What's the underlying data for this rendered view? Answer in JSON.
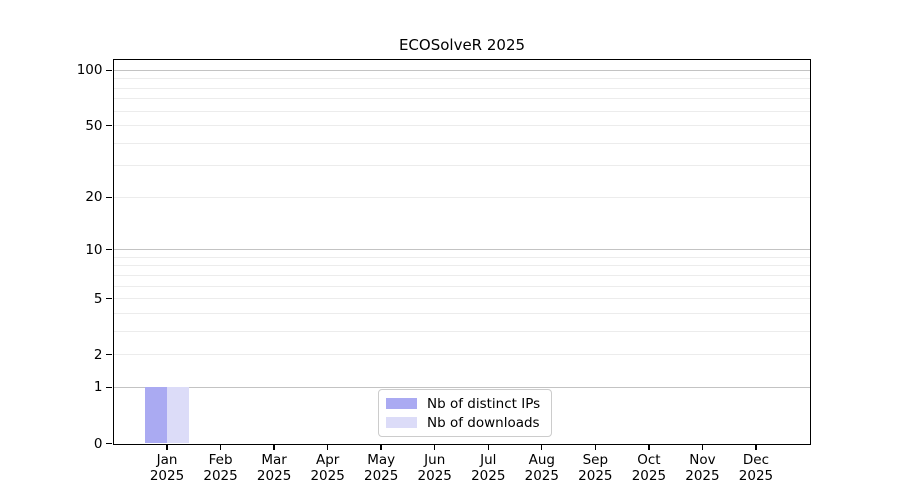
{
  "chart_data": {
    "type": "bar",
    "title": "ECOSolveR 2025",
    "categories": [
      "Jan",
      "Feb",
      "Mar",
      "Apr",
      "May",
      "Jun",
      "Jul",
      "Aug",
      "Sep",
      "Oct",
      "Nov",
      "Dec"
    ],
    "category_year": "2025",
    "series": [
      {
        "name": "Nb of distinct IPs",
        "color": "#aaaaf2",
        "values": [
          1,
          0,
          0,
          0,
          0,
          0,
          0,
          0,
          0,
          0,
          0,
          0
        ]
      },
      {
        "name": "Nb of downloads",
        "color": "#dcdcf8",
        "values": [
          1,
          0,
          0,
          0,
          0,
          0,
          0,
          0,
          0,
          0,
          0,
          0
        ]
      }
    ],
    "xlabel": "",
    "ylabel": "",
    "y_scale": "log1p",
    "y_ticks": [
      0,
      1,
      2,
      5,
      10,
      20,
      50,
      100
    ],
    "ylim": [
      0,
      114.7
    ],
    "grid": {
      "major": [
        1,
        10,
        100
      ],
      "minor": [
        2,
        3,
        4,
        5,
        6,
        7,
        8,
        9,
        20,
        30,
        40,
        50,
        60,
        70,
        80,
        90
      ]
    },
    "legend": {
      "position": "lower center"
    }
  },
  "colors": {
    "spine": "#000000",
    "major_grid": "#c3c3c3",
    "minor_grid": "#ececec",
    "legend_border": "#cccccc",
    "background": "#ffffff"
  }
}
